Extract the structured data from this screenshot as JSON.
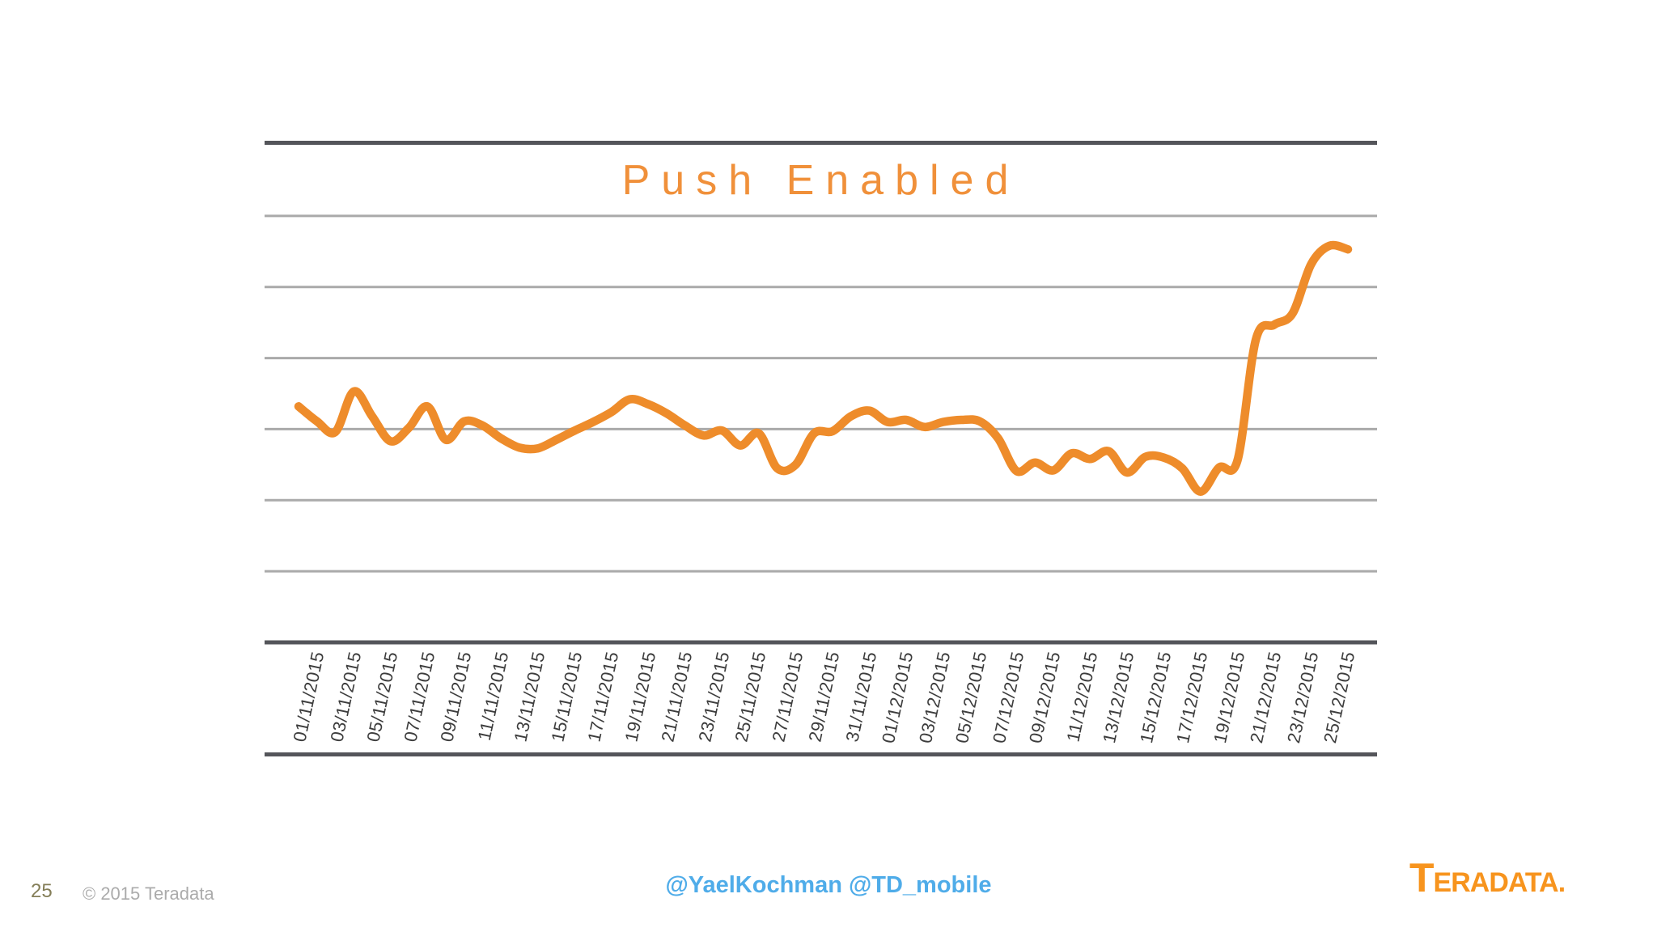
{
  "slide": {
    "page_number": "25",
    "copyright": "© 2015 Teradata",
    "social_handles": "@YaelKochman @TD_mobile",
    "logo": {
      "wordmark_first": "T",
      "wordmark_rest": "ERADATA",
      "dot": "."
    }
  },
  "chart_data": {
    "type": "line",
    "title": "Push Enabled",
    "legend": "none",
    "x_tick_labels": [
      "01/11/2015",
      "03/11/2015",
      "05/11/2015",
      "07/11/2015",
      "09/11/2015",
      "11/11/2015",
      "13/11/2015",
      "15/11/2015",
      "17/11/2015",
      "19/11/2015",
      "21/11/2015",
      "23/11/2015",
      "25/11/2015",
      "27/11/2015",
      "29/11/2015",
      "31/11/2015",
      "01/12/2015",
      "03/12/2015",
      "05/12/2015",
      "07/12/2015",
      "09/12/2015",
      "11/12/2015",
      "13/12/2015",
      "15/12/2015",
      "17/12/2015",
      "19/12/2015",
      "21/12/2015",
      "23/12/2015",
      "25/12/2015"
    ],
    "series": [
      {
        "name": "Push Enabled",
        "values": [
          3.32,
          3.11,
          2.96,
          3.53,
          3.18,
          2.83,
          3.02,
          3.32,
          2.85,
          3.11,
          3.05,
          2.87,
          2.74,
          2.73,
          2.85,
          2.98,
          3.1,
          3.24,
          3.42,
          3.35,
          3.22,
          3.05,
          2.91,
          2.98,
          2.77,
          2.94,
          2.45,
          2.5,
          2.94,
          2.97,
          3.18,
          3.26,
          3.1,
          3.13,
          3.03,
          3.1,
          3.13,
          3.11,
          2.87,
          2.41,
          2.53,
          2.42,
          2.66,
          2.58,
          2.69,
          2.39,
          2.61,
          2.6,
          2.45,
          2.12,
          2.46,
          2.56,
          4.26,
          4.47,
          4.63,
          5.32,
          5.58,
          5.53
        ]
      }
    ],
    "y_axis": {
      "labels_visible": false,
      "ylim": [
        0,
        7
      ],
      "gridline_step": 1,
      "grid": "horizontal"
    },
    "colors": {
      "line": "#EE8C2B",
      "title": "#F0903A",
      "gridline": "#AAAAAA",
      "dark_border": "#54555A",
      "tick_label": "#3D3D3D"
    }
  },
  "footer_colors": {
    "page_number": "#847E58",
    "copyright": "#ABABAB",
    "social": "#4FACE9",
    "logo": "#F7941E"
  }
}
